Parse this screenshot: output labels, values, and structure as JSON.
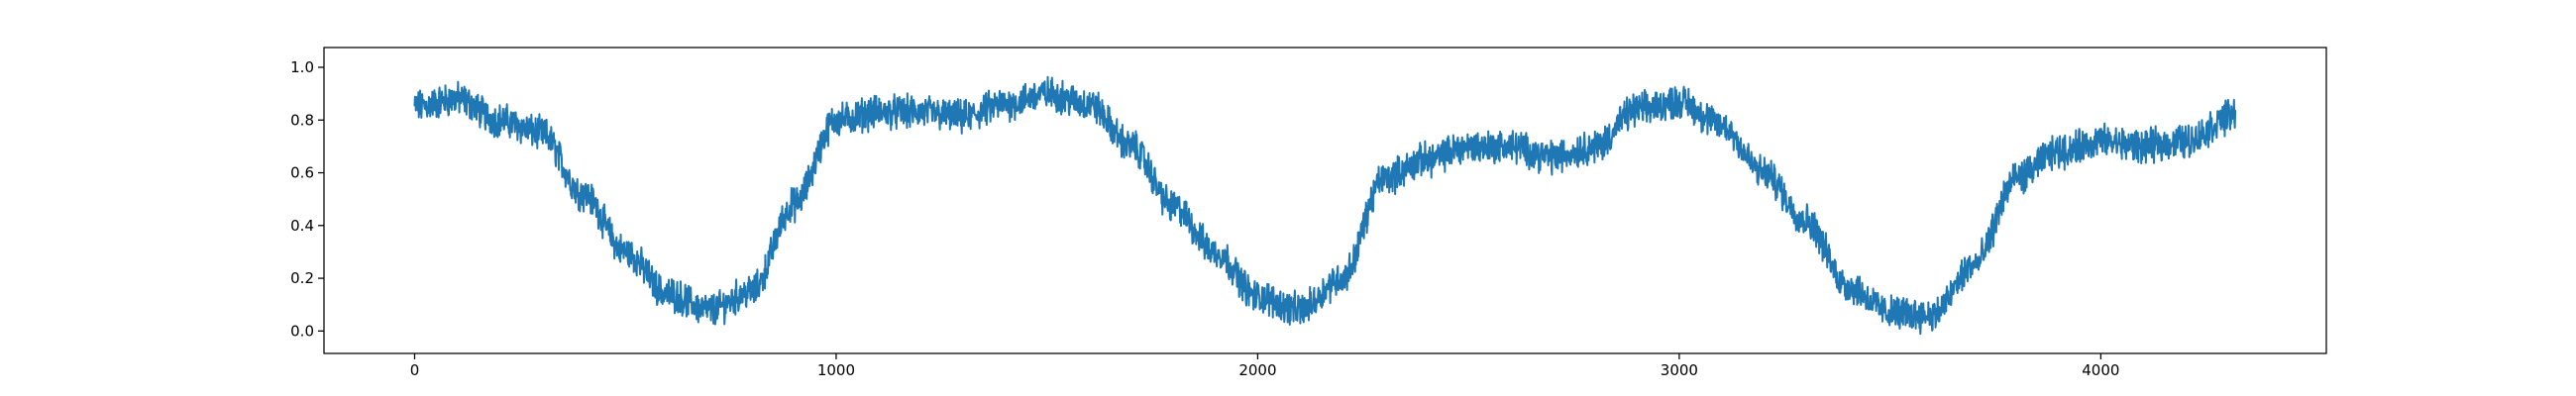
{
  "chart_data": {
    "type": "line",
    "title": "",
    "xlabel": "",
    "ylabel": "",
    "xlim": [
      -215,
      4535
    ],
    "ylim": [
      -0.085,
      1.075
    ],
    "x_ticks": [
      0,
      1000,
      2000,
      3000,
      4000
    ],
    "y_ticks": [
      0.0,
      0.2,
      0.4,
      0.6,
      0.8,
      1.0
    ],
    "x_tick_labels": [
      "0",
      "1000",
      "2000",
      "3000",
      "4000"
    ],
    "y_tick_labels": [
      "0.0",
      "0.2",
      "0.4",
      "0.6",
      "0.8",
      "1.0"
    ],
    "grid": false,
    "legend": "none",
    "n_points": 4320,
    "series": [
      {
        "color": "#1f77b4",
        "x": [
          0,
          100,
          200,
          300,
          400,
          500,
          600,
          700,
          800,
          900,
          1000,
          1100,
          1200,
          1300,
          1400,
          1500,
          1600,
          1700,
          1800,
          1900,
          2000,
          2100,
          2200,
          2300,
          2400,
          2500,
          2600,
          2700,
          2800,
          2900,
          3000,
          3100,
          3200,
          3300,
          3400,
          3500,
          3600,
          3700,
          3800,
          3900,
          4000,
          4100,
          4200,
          4320
        ],
        "values": [
          0.85,
          0.88,
          0.8,
          0.75,
          0.52,
          0.3,
          0.14,
          0.08,
          0.15,
          0.48,
          0.8,
          0.83,
          0.83,
          0.81,
          0.86,
          0.9,
          0.86,
          0.7,
          0.47,
          0.3,
          0.13,
          0.08,
          0.2,
          0.58,
          0.65,
          0.7,
          0.7,
          0.66,
          0.7,
          0.84,
          0.87,
          0.78,
          0.6,
          0.42,
          0.17,
          0.07,
          0.06,
          0.25,
          0.58,
          0.68,
          0.72,
          0.7,
          0.72,
          0.82
        ],
        "noise_amplitude": 0.05
      }
    ]
  }
}
